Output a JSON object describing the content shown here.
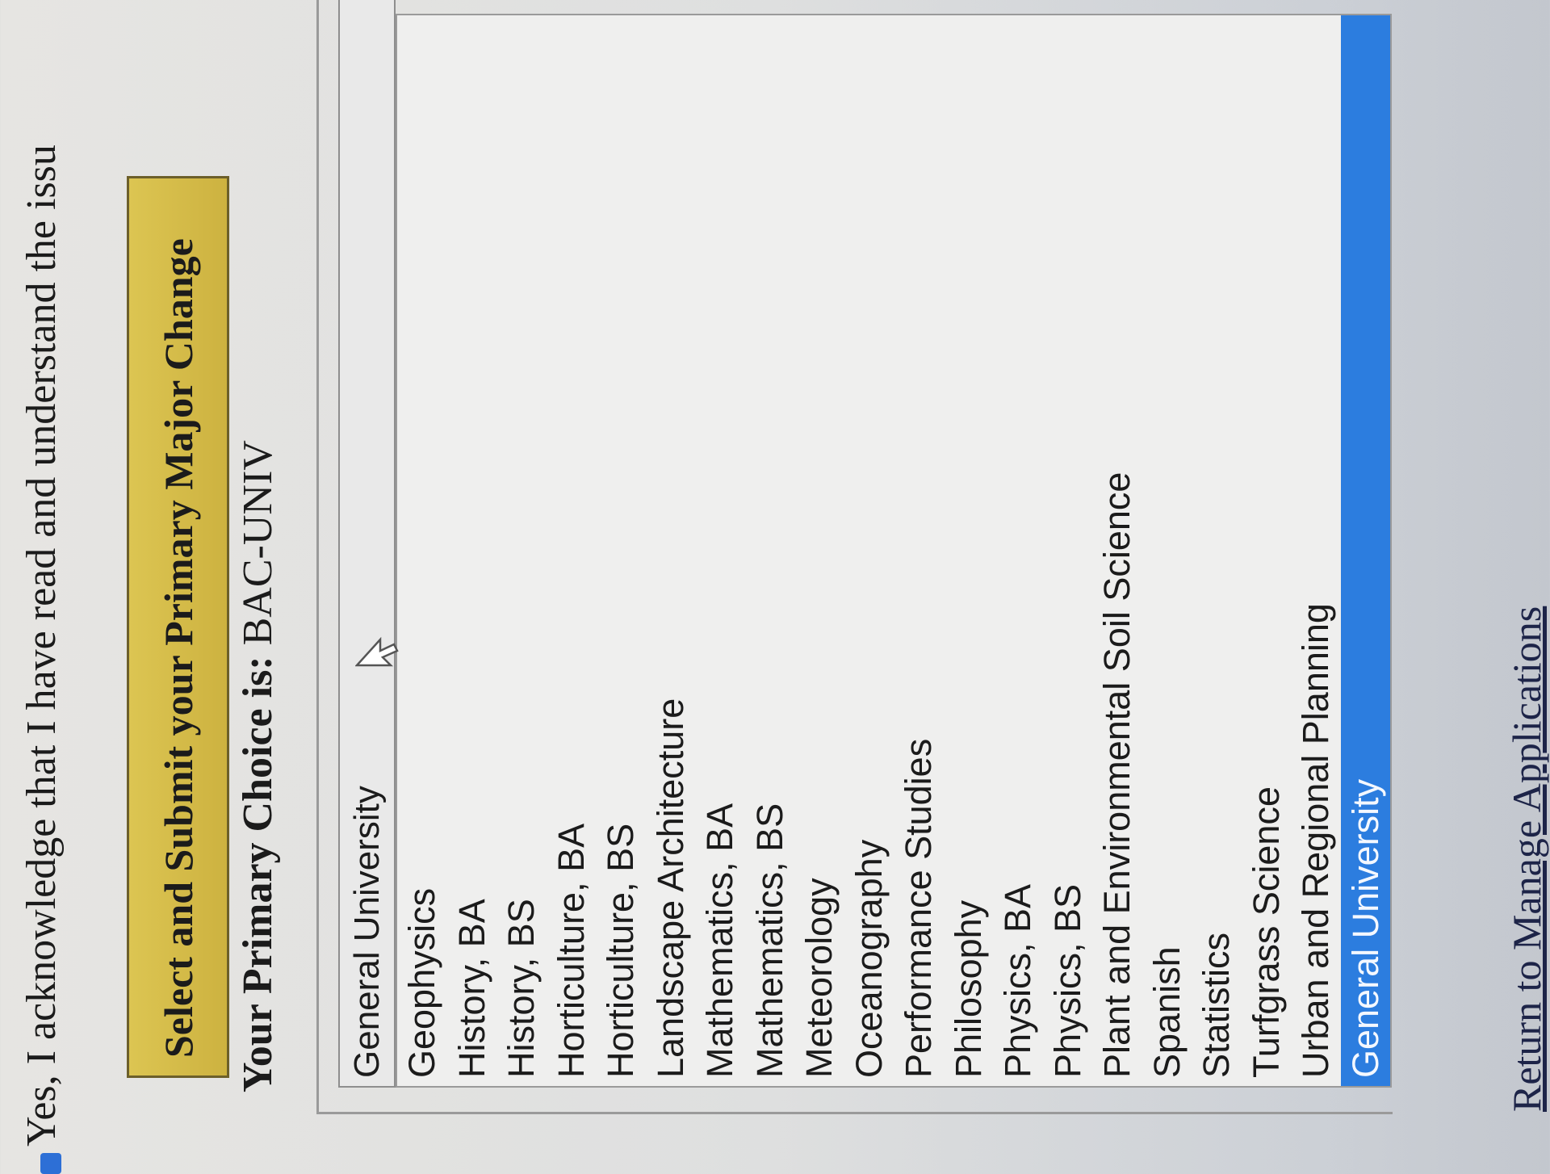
{
  "acknowledge": {
    "text": "Yes, I acknowledge that I have read and understand the issu",
    "checked": true
  },
  "submit_button": {
    "label": "Select and Submit your Primary Major Change"
  },
  "primary_choice": {
    "label": "Your Primary Choice is:",
    "value": "BAC-UNIV"
  },
  "major_select": {
    "selected": "General University",
    "options": [
      "Geophysics",
      "History, BA",
      "History, BS",
      "Horticulture, BA",
      "Horticulture, BS",
      "Landscape Architecture",
      "Mathematics, BA",
      "Mathematics, BS",
      "Meteorology",
      "Oceanography",
      "Performance Studies",
      "Philosophy",
      "Physics, BA",
      "Physics, BS",
      "Plant and Environmental Soil Science",
      "Spanish",
      "Statistics",
      "Turfgrass Science",
      "Urban and Regional Planning",
      "General University"
    ],
    "highlighted_index": 19
  },
  "return_link": {
    "label": "Return to Manage Applications"
  },
  "colors": {
    "button": "#d4bb48",
    "highlight": "#2c7ddf",
    "link": "#1d2448"
  }
}
